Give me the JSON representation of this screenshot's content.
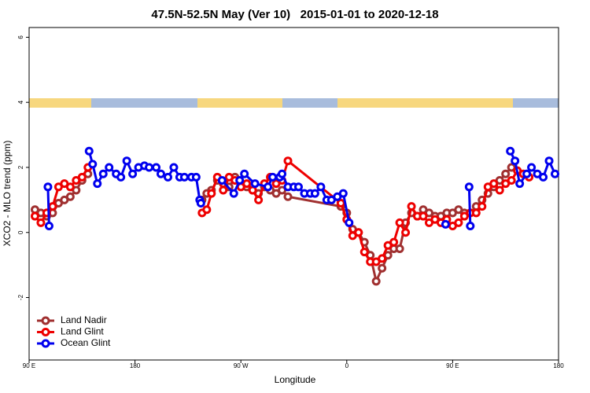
{
  "chart_data": {
    "type": "line",
    "title": "47.5N-52.5N May (Ver 10)   2015-01-01 to 2020-12-18",
    "x_label": "Longitude",
    "y_label": "XCO2 - MLO trend (ppm)",
    "xlim": [
      90,
      540
    ],
    "xticks": [
      {
        "value": 90,
        "label": "90 E"
      },
      180,
      {
        "value": 270,
        "label": "90 W"
      },
      {
        "value": 360,
        "label": "0"
      },
      {
        "value": 450,
        "label": "90 E"
      },
      {
        "value": 540,
        "label": "180"
      }
    ],
    "ylim": [
      -3.92,
      6.3
    ],
    "yticks": [
      -2,
      0,
      2,
      4,
      6
    ],
    "legend": "bottom-left",
    "series": [
      {
        "name": "Land Nadir",
        "color": "#a03030",
        "x": [
          95,
          100,
          105,
          110,
          115,
          120,
          125,
          130,
          135,
          140,
          190,
          237,
          241,
          245,
          250,
          255,
          260,
          265,
          270,
          275,
          280,
          285,
          290,
          295,
          300,
          305,
          310,
          355,
          360,
          365,
          370,
          375,
          380,
          385,
          390,
          395,
          400,
          405,
          410,
          415,
          420,
          425,
          430,
          435,
          440,
          445,
          450,
          455,
          460,
          465,
          470,
          475,
          480,
          485,
          490,
          495,
          500
        ],
        "values": [
          0.7,
          0.6,
          0.5,
          0.6,
          0.9,
          1.0,
          1.1,
          1.3,
          1.6,
          1.8,
          null,
          1.0,
          1.2,
          1.3,
          1.6,
          1.5,
          1.4,
          1.7,
          1.5,
          1.4,
          1.3,
          1.2,
          1.4,
          1.3,
          1.2,
          1.3,
          1.1,
          0.8,
          0.6,
          0.1,
          0.0,
          -0.3,
          -0.7,
          -1.5,
          -1.1,
          -0.7,
          -0.5,
          -0.5,
          0.3,
          0.6,
          0.5,
          0.7,
          0.6,
          0.5,
          0.5,
          0.6,
          0.6,
          0.7,
          0.6,
          0.6,
          0.8,
          1.0,
          1.2,
          1.4,
          1.6,
          1.8,
          2.0
        ]
      },
      {
        "name": "Land Glint",
        "color": "#ee0000",
        "x": [
          95,
          100,
          105,
          110,
          115,
          120,
          125,
          130,
          135,
          140,
          190,
          237,
          241,
          245,
          250,
          255,
          260,
          265,
          270,
          275,
          280,
          285,
          290,
          295,
          300,
          305,
          310,
          355,
          360,
          365,
          370,
          375,
          380,
          385,
          390,
          395,
          400,
          405,
          410,
          415,
          420,
          425,
          430,
          435,
          440,
          445,
          450,
          455,
          460,
          465,
          470,
          475,
          480,
          485,
          490,
          495,
          500,
          505,
          510,
          515
        ],
        "values": [
          0.5,
          0.3,
          0.6,
          0.8,
          1.4,
          1.5,
          1.4,
          1.6,
          1.7,
          2.0,
          null,
          0.6,
          0.7,
          1.2,
          1.7,
          1.3,
          1.7,
          1.6,
          1.4,
          1.5,
          1.3,
          1.0,
          1.5,
          1.7,
          1.5,
          1.6,
          2.2,
          0.9,
          0.4,
          -0.1,
          0.0,
          -0.6,
          -0.9,
          -0.9,
          -0.8,
          -0.4,
          -0.3,
          0.3,
          0.0,
          0.8,
          0.5,
          0.5,
          0.3,
          0.4,
          0.3,
          0.4,
          0.2,
          0.3,
          0.5,
          0.6,
          0.6,
          0.8,
          1.4,
          1.5,
          1.3,
          1.5,
          1.6,
          1.9,
          1.8,
          1.7
        ]
      },
      {
        "name": "Ocean Glint",
        "color": "#0000ee",
        "x": [
          106,
          107,
          124,
          141,
          144,
          148,
          153,
          158,
          164,
          168,
          173,
          178,
          183,
          188,
          192,
          198,
          202,
          208,
          213,
          218,
          222,
          228,
          232,
          235,
          236,
          245,
          254,
          264,
          269,
          273,
          282,
          293,
          297,
          303,
          305,
          310,
          315,
          319,
          324,
          329,
          333,
          338,
          343,
          347,
          352,
          357,
          362,
          400,
          444,
          455,
          464,
          465,
          480,
          499,
          503,
          507,
          513,
          517,
          522,
          527,
          532,
          537
        ],
        "values": [
          1.4,
          0.2,
          null,
          2.5,
          2.1,
          1.5,
          1.8,
          2.0,
          1.8,
          1.7,
          2.2,
          1.8,
          2.0,
          2.05,
          2.0,
          2.0,
          1.8,
          1.7,
          2.0,
          1.7,
          1.7,
          1.7,
          1.7,
          1.0,
          0.9,
          null,
          1.6,
          1.2,
          1.6,
          1.8,
          1.5,
          1.4,
          1.7,
          1.7,
          1.8,
          1.4,
          1.4,
          1.4,
          1.2,
          1.2,
          1.2,
          1.4,
          1.0,
          1.0,
          1.1,
          1.2,
          0.3,
          null,
          0.25,
          null,
          1.4,
          0.2,
          null,
          2.5,
          2.2,
          1.5,
          1.8,
          2.0,
          1.8,
          1.7,
          2.2,
          1.8
        ]
      }
    ]
  }
}
